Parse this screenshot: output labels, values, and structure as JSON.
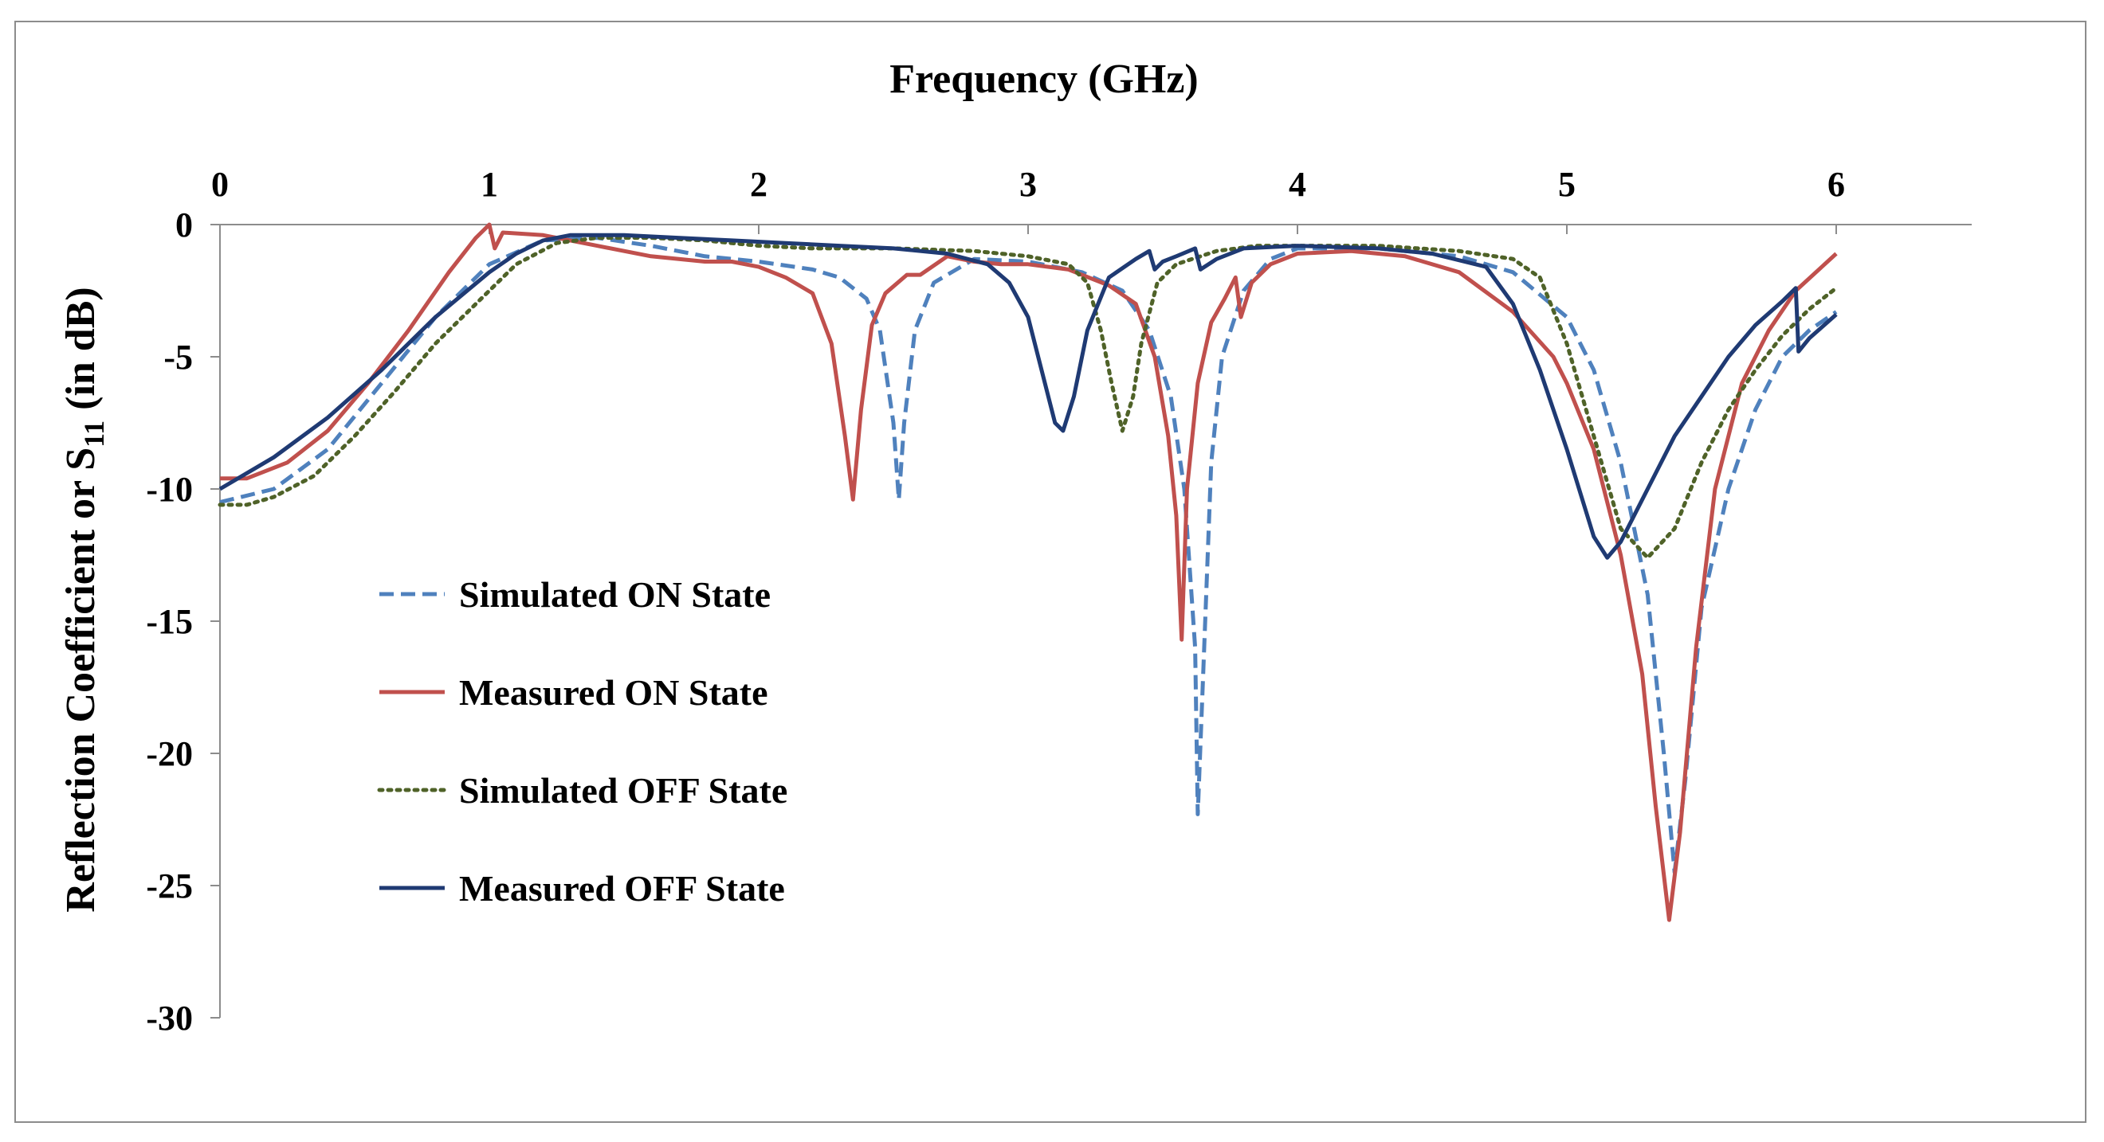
{
  "chart_data": {
    "type": "line",
    "xlabel": "Frequency (GHz)",
    "ylabel_main": "Reflection Coefficient or S",
    "ylabel_sub": "11",
    "ylabel_tail": " (in dB)",
    "xlim": [
      0,
      6.5
    ],
    "ylim": [
      -30,
      0
    ],
    "x_ticks": [
      0,
      1,
      2,
      3,
      4,
      5,
      6
    ],
    "y_ticks": [
      0,
      -5,
      -10,
      -15,
      -20,
      -25,
      -30
    ],
    "x_axis_position": "top",
    "grid": false,
    "legend_position": "center-left",
    "series": [
      {
        "name": "Simulated ON State",
        "color": "#4f81bd",
        "style": "dashed",
        "points": [
          [
            0,
            -10.5
          ],
          [
            0.2,
            -10
          ],
          [
            0.4,
            -8.5
          ],
          [
            0.6,
            -6
          ],
          [
            0.8,
            -3.5
          ],
          [
            1.0,
            -1.5
          ],
          [
            1.2,
            -0.6
          ],
          [
            1.4,
            -0.5
          ],
          [
            1.6,
            -0.8
          ],
          [
            1.8,
            -1.2
          ],
          [
            2.0,
            -1.4
          ],
          [
            2.2,
            -1.7
          ],
          [
            2.3,
            -2.0
          ],
          [
            2.4,
            -2.8
          ],
          [
            2.45,
            -4.0
          ],
          [
            2.5,
            -7.5
          ],
          [
            2.52,
            -10.4
          ],
          [
            2.54,
            -7.5
          ],
          [
            2.58,
            -4.0
          ],
          [
            2.65,
            -2.2
          ],
          [
            2.8,
            -1.3
          ],
          [
            3.0,
            -1.4
          ],
          [
            3.2,
            -1.8
          ],
          [
            3.35,
            -2.5
          ],
          [
            3.45,
            -4.0
          ],
          [
            3.53,
            -6.5
          ],
          [
            3.58,
            -10
          ],
          [
            3.62,
            -16
          ],
          [
            3.63,
            -22.3
          ],
          [
            3.65,
            -17
          ],
          [
            3.68,
            -9
          ],
          [
            3.72,
            -5
          ],
          [
            3.8,
            -2.5
          ],
          [
            3.9,
            -1.3
          ],
          [
            4.0,
            -0.9
          ],
          [
            4.3,
            -0.9
          ],
          [
            4.6,
            -1.2
          ],
          [
            4.8,
            -1.8
          ],
          [
            5.0,
            -3.5
          ],
          [
            5.1,
            -5.5
          ],
          [
            5.2,
            -9
          ],
          [
            5.3,
            -14
          ],
          [
            5.36,
            -20
          ],
          [
            5.4,
            -24.5
          ],
          [
            5.44,
            -21
          ],
          [
            5.5,
            -14.5
          ],
          [
            5.6,
            -10
          ],
          [
            5.7,
            -7
          ],
          [
            5.8,
            -5
          ],
          [
            5.9,
            -4
          ],
          [
            6.0,
            -3.3
          ]
        ]
      },
      {
        "name": "Measured ON State",
        "color": "#c0504d",
        "style": "solid",
        "points": [
          [
            0,
            -9.6
          ],
          [
            0.1,
            -9.6
          ],
          [
            0.25,
            -9
          ],
          [
            0.4,
            -7.8
          ],
          [
            0.55,
            -6
          ],
          [
            0.7,
            -4
          ],
          [
            0.85,
            -1.8
          ],
          [
            0.95,
            -0.5
          ],
          [
            1.0,
            0
          ],
          [
            1.02,
            -0.9
          ],
          [
            1.05,
            -0.3
          ],
          [
            1.2,
            -0.4
          ],
          [
            1.4,
            -0.8
          ],
          [
            1.6,
            -1.2
          ],
          [
            1.8,
            -1.4
          ],
          [
            1.9,
            -1.4
          ],
          [
            2.0,
            -1.6
          ],
          [
            2.1,
            -2.0
          ],
          [
            2.2,
            -2.6
          ],
          [
            2.27,
            -4.5
          ],
          [
            2.32,
            -8
          ],
          [
            2.35,
            -10.4
          ],
          [
            2.38,
            -7
          ],
          [
            2.42,
            -3.8
          ],
          [
            2.47,
            -2.6
          ],
          [
            2.55,
            -1.9
          ],
          [
            2.6,
            -1.9
          ],
          [
            2.7,
            -1.2
          ],
          [
            2.8,
            -1.4
          ],
          [
            2.9,
            -1.5
          ],
          [
            3.0,
            -1.5
          ],
          [
            3.15,
            -1.7
          ],
          [
            3.3,
            -2.3
          ],
          [
            3.4,
            -3.0
          ],
          [
            3.47,
            -5
          ],
          [
            3.52,
            -8
          ],
          [
            3.55,
            -11
          ],
          [
            3.57,
            -15.7
          ],
          [
            3.59,
            -10
          ],
          [
            3.63,
            -6
          ],
          [
            3.68,
            -3.7
          ],
          [
            3.73,
            -2.8
          ],
          [
            3.77,
            -2.0
          ],
          [
            3.79,
            -3.5
          ],
          [
            3.83,
            -2.2
          ],
          [
            3.9,
            -1.5
          ],
          [
            4.0,
            -1.1
          ],
          [
            4.2,
            -1.0
          ],
          [
            4.4,
            -1.2
          ],
          [
            4.6,
            -1.8
          ],
          [
            4.8,
            -3.3
          ],
          [
            4.95,
            -5.0
          ],
          [
            5.0,
            -6.0
          ],
          [
            5.1,
            -8.5
          ],
          [
            5.15,
            -10.5
          ],
          [
            5.2,
            -12.5
          ],
          [
            5.28,
            -17
          ],
          [
            5.33,
            -22
          ],
          [
            5.38,
            -26.3
          ],
          [
            5.42,
            -23
          ],
          [
            5.48,
            -16
          ],
          [
            5.55,
            -10
          ],
          [
            5.65,
            -6
          ],
          [
            5.75,
            -4
          ],
          [
            5.85,
            -2.5
          ],
          [
            6.0,
            -1.1
          ]
        ]
      },
      {
        "name": "Simulated OFF State",
        "color": "#4f6228",
        "style": "dotted",
        "points": [
          [
            0,
            -10.6
          ],
          [
            0.1,
            -10.6
          ],
          [
            0.2,
            -10.3
          ],
          [
            0.35,
            -9.5
          ],
          [
            0.5,
            -8
          ],
          [
            0.65,
            -6.3
          ],
          [
            0.8,
            -4.5
          ],
          [
            0.95,
            -3
          ],
          [
            1.1,
            -1.5
          ],
          [
            1.25,
            -0.7
          ],
          [
            1.4,
            -0.5
          ],
          [
            1.6,
            -0.5
          ],
          [
            1.8,
            -0.6
          ],
          [
            2.0,
            -0.8
          ],
          [
            2.2,
            -0.9
          ],
          [
            2.5,
            -0.9
          ],
          [
            2.8,
            -1.0
          ],
          [
            3.0,
            -1.2
          ],
          [
            3.15,
            -1.5
          ],
          [
            3.22,
            -2.2
          ],
          [
            3.27,
            -4
          ],
          [
            3.31,
            -6
          ],
          [
            3.35,
            -7.8
          ],
          [
            3.39,
            -6.5
          ],
          [
            3.42,
            -4.5
          ],
          [
            3.48,
            -2.2
          ],
          [
            3.55,
            -1.5
          ],
          [
            3.7,
            -1.0
          ],
          [
            3.85,
            -0.8
          ],
          [
            4.0,
            -0.8
          ],
          [
            4.3,
            -0.8
          ],
          [
            4.6,
            -1.0
          ],
          [
            4.8,
            -1.3
          ],
          [
            4.9,
            -2.0
          ],
          [
            5.0,
            -4.5
          ],
          [
            5.1,
            -8
          ],
          [
            5.2,
            -11.5
          ],
          [
            5.3,
            -12.6
          ],
          [
            5.4,
            -11.5
          ],
          [
            5.5,
            -9
          ],
          [
            5.6,
            -7
          ],
          [
            5.7,
            -5.5
          ],
          [
            5.8,
            -4.2
          ],
          [
            5.9,
            -3.2
          ],
          [
            6.0,
            -2.4
          ]
        ]
      },
      {
        "name": "Measured OFF State",
        "color": "#1f3a73",
        "style": "solid",
        "points": [
          [
            0,
            -10
          ],
          [
            0.2,
            -8.8
          ],
          [
            0.4,
            -7.3
          ],
          [
            0.6,
            -5.5
          ],
          [
            0.8,
            -3.5
          ],
          [
            1.0,
            -1.8
          ],
          [
            1.1,
            -1.1
          ],
          [
            1.2,
            -0.6
          ],
          [
            1.3,
            -0.4
          ],
          [
            1.5,
            -0.4
          ],
          [
            1.7,
            -0.5
          ],
          [
            1.9,
            -0.6
          ],
          [
            2.1,
            -0.7
          ],
          [
            2.3,
            -0.8
          ],
          [
            2.5,
            -0.9
          ],
          [
            2.7,
            -1.1
          ],
          [
            2.85,
            -1.5
          ],
          [
            2.93,
            -2.2
          ],
          [
            3.0,
            -3.5
          ],
          [
            3.05,
            -5.5
          ],
          [
            3.1,
            -7.5
          ],
          [
            3.13,
            -7.8
          ],
          [
            3.17,
            -6.5
          ],
          [
            3.22,
            -4
          ],
          [
            3.3,
            -2.0
          ],
          [
            3.4,
            -1.3
          ],
          [
            3.45,
            -1.0
          ],
          [
            3.47,
            -1.7
          ],
          [
            3.5,
            -1.4
          ],
          [
            3.55,
            -1.2
          ],
          [
            3.62,
            -0.9
          ],
          [
            3.64,
            -1.7
          ],
          [
            3.7,
            -1.3
          ],
          [
            3.8,
            -0.9
          ],
          [
            4.0,
            -0.8
          ],
          [
            4.3,
            -0.9
          ],
          [
            4.5,
            -1.1
          ],
          [
            4.7,
            -1.6
          ],
          [
            4.8,
            -3.0
          ],
          [
            4.9,
            -5.5
          ],
          [
            5.0,
            -8.5
          ],
          [
            5.1,
            -11.8
          ],
          [
            5.15,
            -12.6
          ],
          [
            5.2,
            -12
          ],
          [
            5.3,
            -10
          ],
          [
            5.4,
            -8
          ],
          [
            5.5,
            -6.5
          ],
          [
            5.6,
            -5
          ],
          [
            5.7,
            -3.8
          ],
          [
            5.8,
            -2.9
          ],
          [
            5.85,
            -2.4
          ],
          [
            5.86,
            -4.8
          ],
          [
            5.9,
            -4.3
          ],
          [
            6.0,
            -3.4
          ]
        ]
      }
    ]
  }
}
